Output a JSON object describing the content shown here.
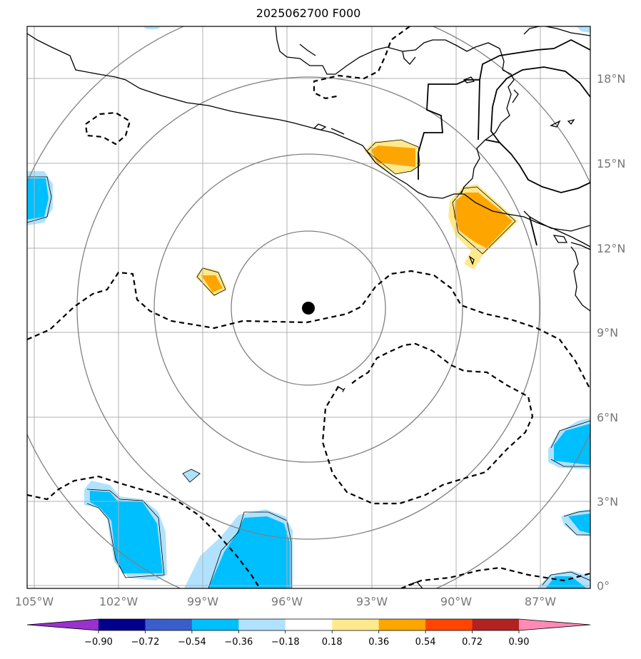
{
  "title": "2025062700 F000",
  "map": {
    "lon_labels": [
      "105°W",
      "102°W",
      "99°W",
      "96°W",
      "93°W",
      "90°W",
      "87°W"
    ],
    "lat_labels": [
      "18°N",
      "15°N",
      "12°N",
      "9°N",
      "6°N",
      "3°N",
      "0°"
    ],
    "contour_label": "1",
    "center_marker": "storm-center"
  },
  "colorbar": {
    "colors": [
      "#9932cc",
      "#00008b",
      "#3a5fcd",
      "#00bfff",
      "#b0e2ff",
      "#ffffff",
      "#ffe98c",
      "#ffa500",
      "#ff4500",
      "#b22222",
      "#ff8ab4"
    ],
    "tick_labels": [
      "−0.90",
      "−0.72",
      "−0.54",
      "−0.36",
      "−0.18",
      "0.18",
      "0.36",
      "0.54",
      "0.72",
      "0.90"
    ]
  }
}
